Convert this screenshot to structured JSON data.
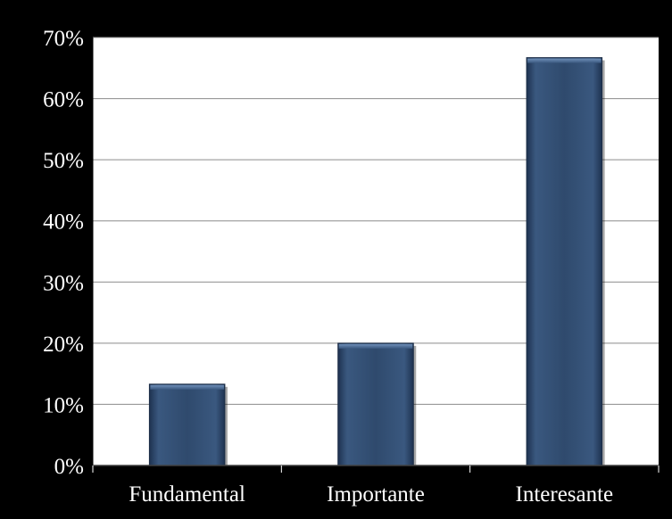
{
  "chart_data": {
    "type": "bar",
    "title": "",
    "xlabel": "",
    "ylabel": "",
    "categories": [
      "Fundamental",
      "Importante",
      "Interesante"
    ],
    "values": [
      13.3,
      20.0,
      66.7
    ],
    "value_unit": "%",
    "ylim": [
      0,
      70
    ],
    "yticks": [
      0,
      10,
      20,
      30,
      40,
      50,
      60,
      70
    ],
    "ytick_labels": [
      "0%",
      "10%",
      "20%",
      "30%",
      "40%",
      "50%",
      "60%",
      "70%"
    ],
    "grid": true,
    "legend": "none",
    "colors": {
      "background": "#000000",
      "plot_area": "#ffffff",
      "bar": "#2f4a6d",
      "gridline": "#8c8c8c",
      "text": "#ffffff"
    }
  }
}
